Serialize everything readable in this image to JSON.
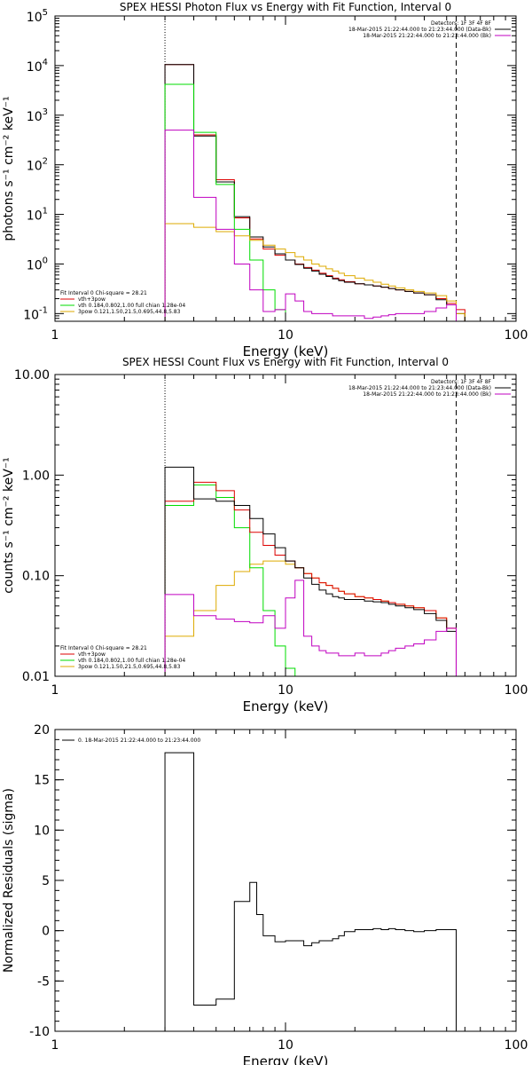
{
  "chart_data": [
    {
      "type": "line",
      "title": "SPEX HESSI Photon Flux vs Energy with Fit Function, Interval 0",
      "xlabel": "Energy (keV)",
      "ylabel": "photons s⁻¹ cm⁻² keV⁻¹",
      "xscale": "log",
      "yscale": "log",
      "xlim": [
        1,
        100
      ],
      "ylim": [
        0.07,
        100000
      ],
      "xticks": [
        {
          "v": 1,
          "label": "1"
        },
        {
          "v": 10,
          "label": "10"
        },
        {
          "v": 100,
          "label": "100"
        }
      ],
      "yticks": [
        {
          "v": 0.1,
          "label": "10",
          "sup": "-1"
        },
        {
          "v": 1,
          "label": "10",
          "sup": "0"
        },
        {
          "v": 10,
          "label": "10",
          "sup": "1"
        },
        {
          "v": 100,
          "label": "10",
          "sup": "2"
        },
        {
          "v": 1000,
          "label": "10",
          "sup": "3"
        },
        {
          "v": 10000,
          "label": "10",
          "sup": "4"
        },
        {
          "v": 100000,
          "label": "10",
          "sup": "5"
        }
      ],
      "vlines": [
        {
          "x": 3,
          "style": "dotted"
        },
        {
          "x": 55,
          "style": "dashed"
        }
      ],
      "legend_top_right": [
        {
          "text": "Detectors: 1F 3F 4F 8F",
          "color": "#000000"
        },
        {
          "text": "18-Mar-2015 21:22:44.000 to 21:23:44.000 (Data-Bk)",
          "color": "#000000"
        },
        {
          "text": "18-Mar-2015 21:22:44.000 to 21:23:44.000 (Bk)",
          "color": "#c000c0"
        }
      ],
      "legend_bottom_left": [
        {
          "text": "Fit Interval 0   Chi-square = 28.21",
          "color": "#000000"
        },
        {
          "text": "vth+3pow",
          "color": "#dd0000"
        },
        {
          "text": "vth 0.184,0.802,1.00  full chian 1.28e-04",
          "color": "#00dd00"
        },
        {
          "text": "3pow 0.121,1.50,21.5,0.695,44.8,5.83",
          "color": "#ddaa00"
        }
      ],
      "edges": [
        3,
        4,
        5,
        6,
        7,
        8,
        9,
        10,
        11,
        12,
        13,
        14,
        15,
        16,
        17,
        18,
        20,
        22,
        24,
        26,
        28,
        30,
        33,
        36,
        40,
        45,
        50,
        55,
        60
      ],
      "series": [
        {
          "name": "vth+3pow",
          "color": "#dd0000",
          "values": [
            10500,
            400,
            50,
            8.5,
            3.2,
            2.0,
            1.5,
            1.2,
            1.0,
            0.85,
            0.75,
            0.65,
            0.58,
            0.52,
            0.48,
            0.44,
            0.4,
            0.38,
            0.36,
            0.34,
            0.32,
            0.3,
            0.28,
            0.26,
            0.24,
            0.2,
            0.16,
            0.12
          ]
        },
        {
          "name": "Data-Bk",
          "color": "#000000",
          "values": [
            10500,
            380,
            45,
            9,
            3.5,
            2.2,
            1.6,
            1.2,
            0.98,
            0.82,
            0.72,
            0.62,
            0.56,
            0.5,
            0.46,
            0.43,
            0.4,
            0.38,
            0.36,
            0.34,
            0.32,
            0.3,
            0.28,
            0.26,
            0.24,
            0.19,
            0.15,
            0.1
          ]
        },
        {
          "name": "vth",
          "color": "#00dd00",
          "values": [
            4200,
            450,
            40,
            5,
            1.2,
            0.3,
            0.12,
            0.03
          ]
        },
        {
          "name": "3pow",
          "color": "#ddaa00",
          "values": [
            6.5,
            5.5,
            4.5,
            3.7,
            3.0,
            2.4,
            2.0,
            1.7,
            1.4,
            1.2,
            1.0,
            0.9,
            0.8,
            0.72,
            0.65,
            0.58,
            0.52,
            0.47,
            0.43,
            0.39,
            0.36,
            0.33,
            0.3,
            0.28,
            0.26,
            0.23,
            0.18,
            0.1
          ]
        },
        {
          "name": "Bk",
          "color": "#c000c0",
          "values": [
            500,
            22,
            5,
            1.0,
            0.3,
            0.11,
            0.12,
            0.25,
            0.18,
            0.11,
            0.1,
            0.1,
            0.1,
            0.09,
            0.09,
            0.09,
            0.09,
            0.08,
            0.085,
            0.09,
            0.095,
            0.1,
            0.1,
            0.1,
            0.11,
            0.13,
            0.15,
            0.05
          ]
        }
      ]
    },
    {
      "type": "line",
      "title": "SPEX HESSI Count Flux vs Energy with Fit Function, Interval 0",
      "xlabel": "Energy (keV)",
      "ylabel": "counts s⁻¹ cm⁻² keV⁻¹",
      "xscale": "log",
      "yscale": "log",
      "xlim": [
        1,
        100
      ],
      "ylim": [
        0.01,
        10
      ],
      "xticks": [
        {
          "v": 1,
          "label": "1"
        },
        {
          "v": 10,
          "label": "10"
        },
        {
          "v": 100,
          "label": "100"
        }
      ],
      "yticks": [
        {
          "v": 0.01,
          "label": "0.01"
        },
        {
          "v": 0.1,
          "label": "0.10"
        },
        {
          "v": 1,
          "label": "1.00"
        },
        {
          "v": 10,
          "label": "10.00"
        }
      ],
      "vlines": [
        {
          "x": 3,
          "style": "dotted"
        },
        {
          "x": 55,
          "style": "dashed"
        }
      ],
      "legend_top_right": [
        {
          "text": "Detectors: 1F 3F 4F 8F",
          "color": "#000000"
        },
        {
          "text": "18-Mar-2015 21:22:44.000 to 21:23:44.000 (Data-Bk)",
          "color": "#000000"
        },
        {
          "text": "18-Mar-2015 21:22:44.000 to 21:23:44.000 (Bk)",
          "color": "#c000c0"
        }
      ],
      "legend_bottom_left": [
        {
          "text": "Fit Interval 0   Chi-square = 28.21",
          "color": "#000000"
        },
        {
          "text": "vth+3pow",
          "color": "#dd0000"
        },
        {
          "text": "vth 0.184,0.802,1.00  full chian 1.28e-04",
          "color": "#00dd00"
        },
        {
          "text": "3pow 0.121,1.50,21.5,0.695,44.8,5.83",
          "color": "#ddaa00"
        }
      ],
      "edges": [
        3,
        4,
        5,
        6,
        7,
        8,
        9,
        10,
        11,
        12,
        13,
        14,
        15,
        16,
        17,
        18,
        20,
        22,
        24,
        26,
        28,
        30,
        33,
        36,
        40,
        45,
        50,
        55,
        60
      ],
      "series": [
        {
          "name": "3pow",
          "color": "#ddaa00",
          "values": [
            0.025,
            0.045,
            0.08,
            0.11,
            0.13,
            0.14,
            0.14,
            0.13,
            0.12,
            0.105,
            0.095,
            0.085,
            0.08,
            0.075,
            0.07,
            0.066,
            0.062,
            0.06,
            0.058,
            0.056,
            0.054,
            0.052,
            0.05,
            0.048,
            0.045,
            0.038,
            0.03,
            0.01
          ]
        },
        {
          "name": "vth",
          "color": "#00dd00",
          "values": [
            0.5,
            0.8,
            0.6,
            0.3,
            0.12,
            0.045,
            0.02,
            0.012,
            0.006
          ]
        },
        {
          "name": "vth+3pow",
          "color": "#dd0000",
          "values": [
            0.55,
            0.85,
            0.7,
            0.45,
            0.27,
            0.2,
            0.16,
            0.14,
            0.12,
            0.105,
            0.095,
            0.085,
            0.08,
            0.075,
            0.07,
            0.066,
            0.062,
            0.06,
            0.058,
            0.056,
            0.054,
            0.052,
            0.05,
            0.048,
            0.045,
            0.038,
            0.03,
            0.01
          ]
        },
        {
          "name": "Data-Bk",
          "color": "#000000",
          "values": [
            1.2,
            0.58,
            0.55,
            0.5,
            0.37,
            0.26,
            0.19,
            0.14,
            0.12,
            0.095,
            0.082,
            0.072,
            0.066,
            0.062,
            0.06,
            0.058,
            0.058,
            0.056,
            0.055,
            0.054,
            0.052,
            0.05,
            0.048,
            0.046,
            0.042,
            0.036,
            0.028,
            0.01
          ]
        },
        {
          "name": "Bk",
          "color": "#c000c0",
          "values": [
            0.065,
            0.04,
            0.037,
            0.035,
            0.034,
            0.04,
            0.03,
            0.06,
            0.09,
            0.025,
            0.02,
            0.018,
            0.017,
            0.017,
            0.016,
            0.016,
            0.017,
            0.016,
            0.016,
            0.017,
            0.018,
            0.019,
            0.02,
            0.021,
            0.023,
            0.028,
            0.03,
            0.01
          ]
        }
      ]
    },
    {
      "type": "line",
      "title": "",
      "xlabel": "Energy (keV)",
      "ylabel": "Normalized Residuals (sigma)",
      "xscale": "log",
      "yscale": "linear",
      "xlim": [
        1,
        100
      ],
      "ylim": [
        -10,
        20
      ],
      "xticks": [
        {
          "v": 1,
          "label": "1"
        },
        {
          "v": 10,
          "label": "10"
        },
        {
          "v": 100,
          "label": "100"
        }
      ],
      "yticks": [
        {
          "v": -10,
          "label": "-10"
        },
        {
          "v": -5,
          "label": "-5"
        },
        {
          "v": 0,
          "label": "0"
        },
        {
          "v": 5,
          "label": "5"
        },
        {
          "v": 10,
          "label": "10"
        },
        {
          "v": 15,
          "label": "15"
        },
        {
          "v": 20,
          "label": "20"
        }
      ],
      "vlines": [],
      "legend_top_left": [
        {
          "text": "0. 18-Mar-2015 21:22:44.000 to 21:23:44.000",
          "color": "#000000"
        }
      ],
      "edges": [
        3,
        4,
        5,
        6,
        7,
        7.5,
        8,
        9,
        10,
        11,
        12,
        13,
        14,
        15,
        16,
        17,
        18,
        20,
        22,
        24,
        26,
        28,
        30,
        33,
        36,
        40,
        45,
        50,
        55
      ],
      "series": [
        {
          "name": "0. 18-Mar-2015 21:22:44.000 to 21:23:44.000",
          "color": "#000000",
          "values": [
            17.7,
            -7.4,
            -6.8,
            2.9,
            4.8,
            1.6,
            -0.5,
            -1.1,
            -1.0,
            -1.0,
            -1.5,
            -1.2,
            -1.0,
            -1.0,
            -0.8,
            -0.5,
            -0.1,
            0.1,
            0.1,
            0.2,
            0.1,
            0.2,
            0.1,
            0.0,
            -0.1,
            0.0,
            0.1,
            0.1
          ],
          "close_to_floor": true
        }
      ]
    }
  ]
}
